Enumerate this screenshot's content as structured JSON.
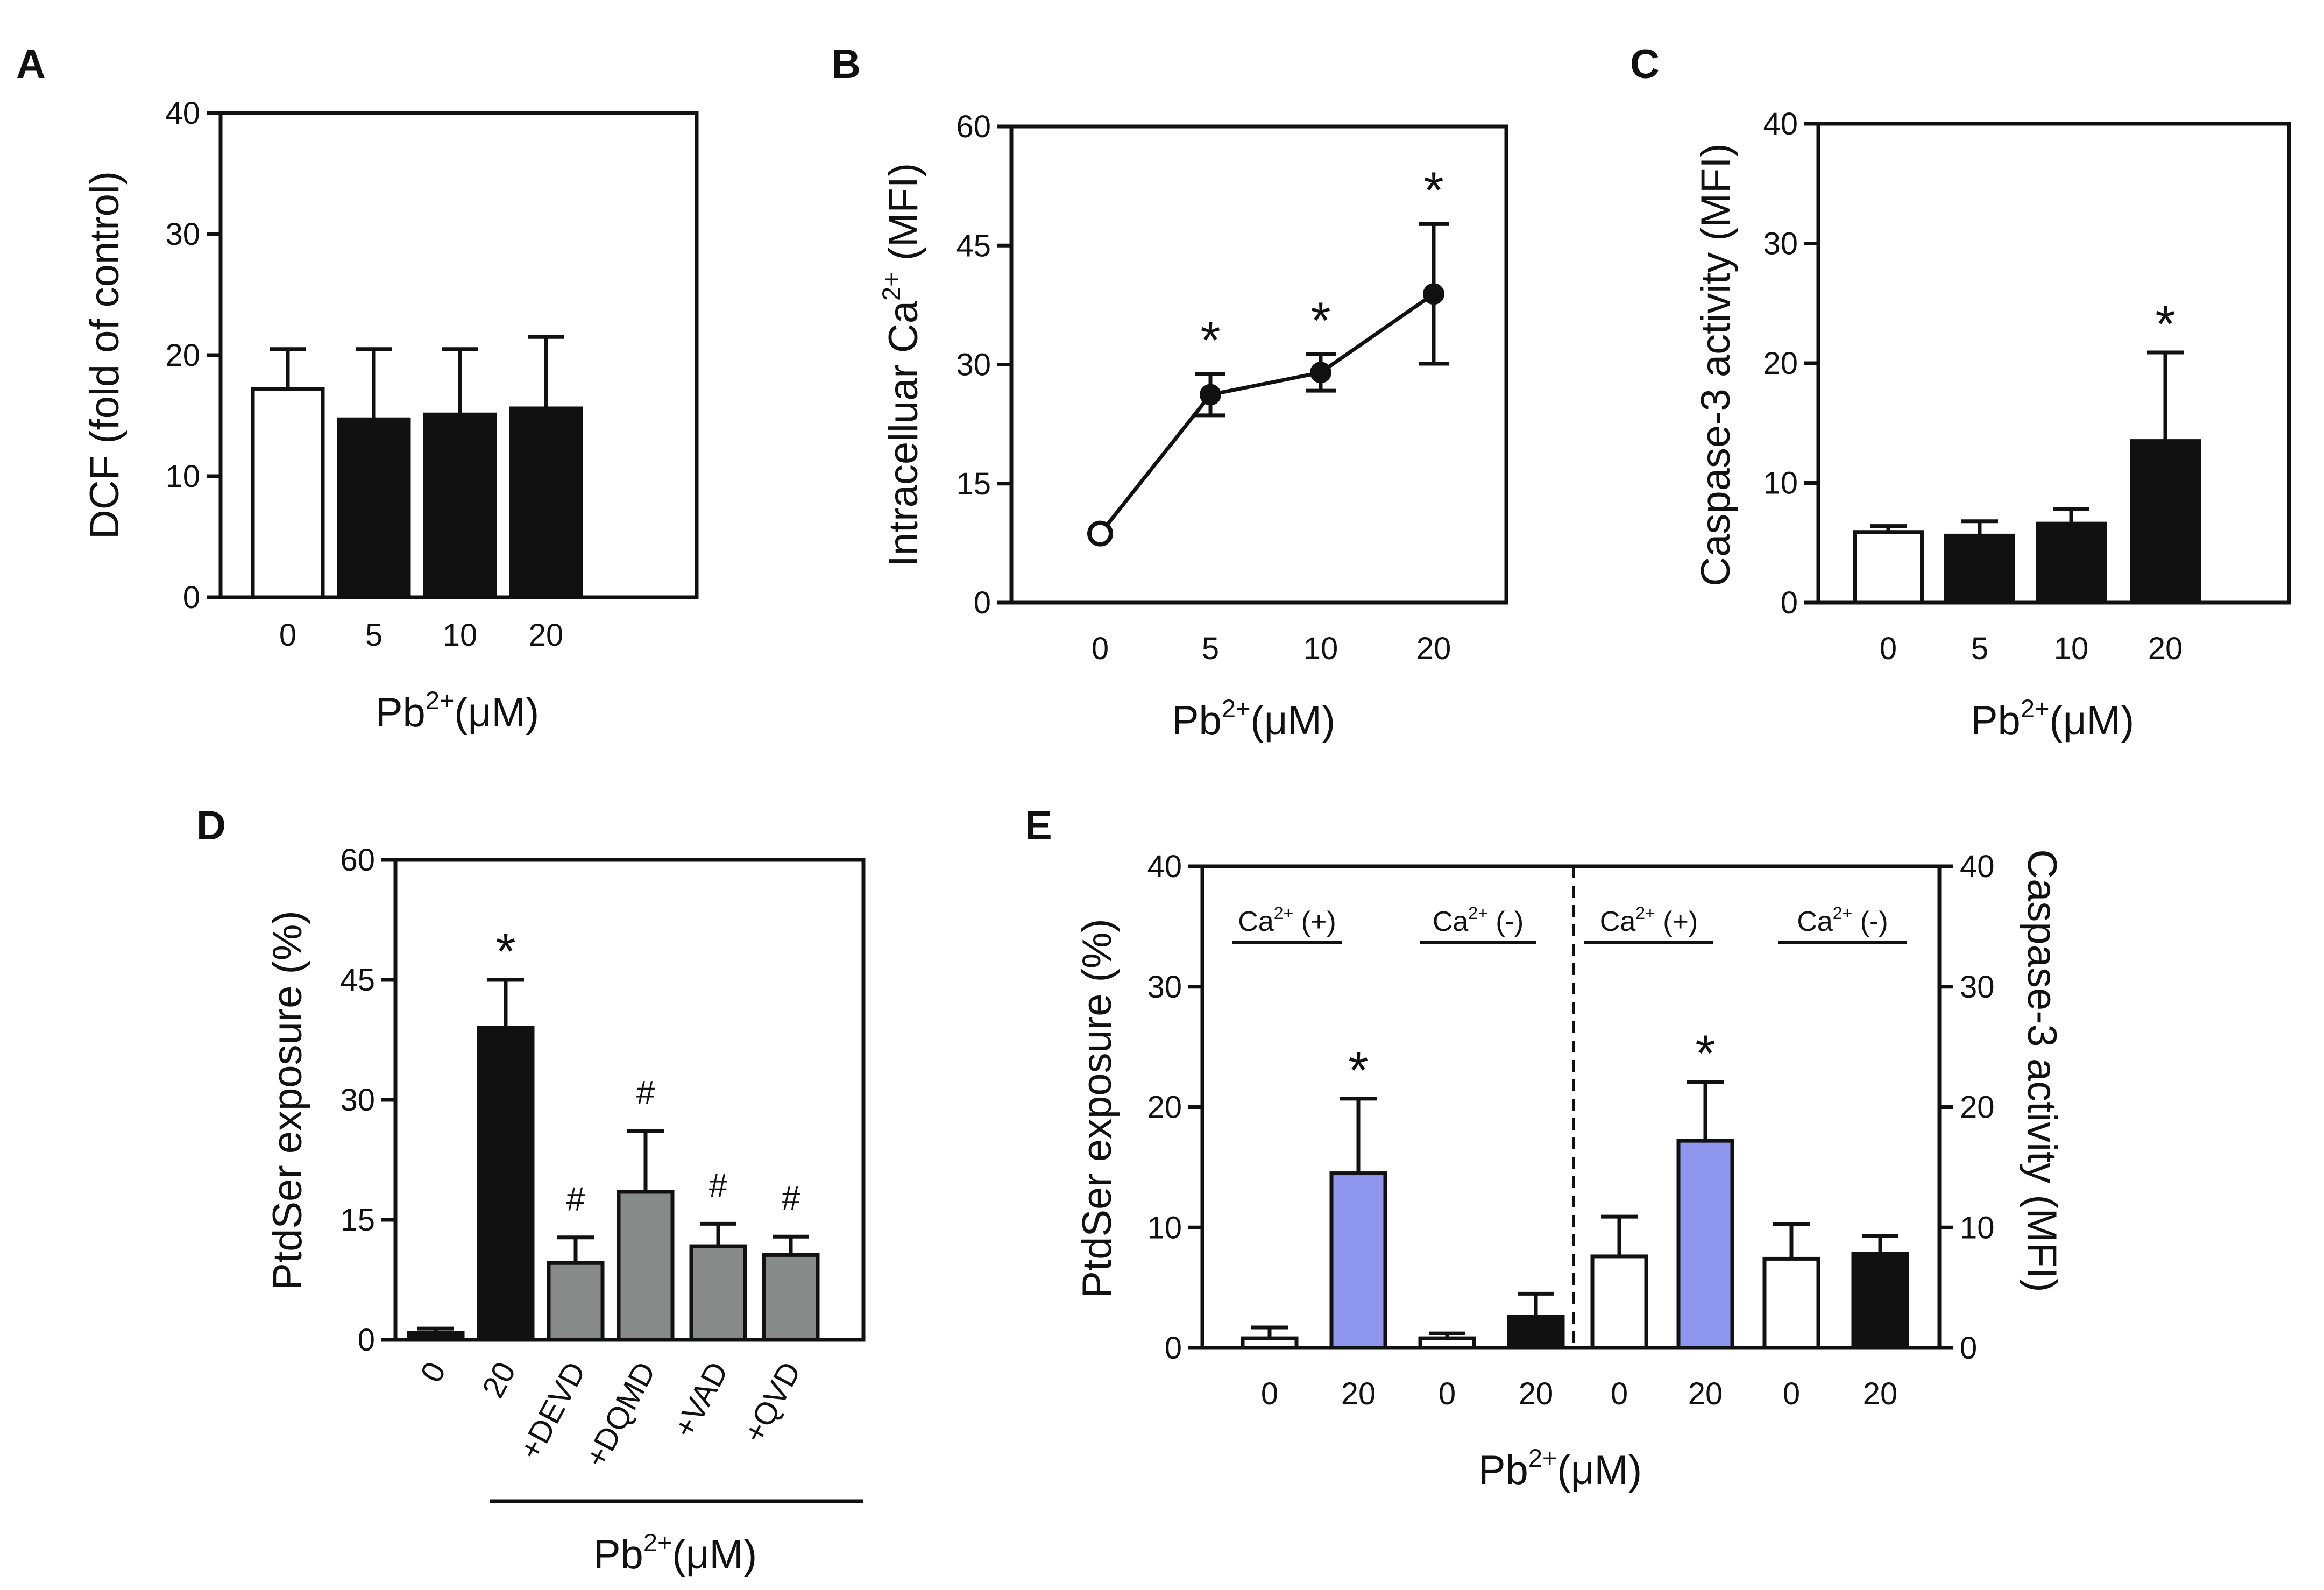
{
  "colors": {
    "black": "#111111",
    "white": "#ffffff",
    "gray": "#878a89",
    "blue": "#8f96ee"
  },
  "chart_data": [
    {
      "panel": "A",
      "type": "bar",
      "ylabel": "DCF (fold of control)",
      "xlabel_base": "Pb",
      "xlabel_sup": "2+",
      "xlabel_unit": "(μM)",
      "ylim": [
        0,
        40
      ],
      "yticks": [
        "0",
        "10",
        "20",
        "30",
        "40"
      ],
      "categories": [
        "0",
        "5",
        "10",
        "20"
      ],
      "values": [
        17.2,
        14.7,
        15.1,
        15.6
      ],
      "errors": [
        3.3,
        5.8,
        5.4,
        5.9
      ],
      "fills": [
        "white",
        "black",
        "black",
        "black"
      ],
      "stars": []
    },
    {
      "panel": "B",
      "type": "line",
      "ylabel_base": "Intracelluar Ca",
      "ylabel_sup": "2+",
      "ylabel_unit": " (MFI)",
      "xlabel_base": "Pb",
      "xlabel_sup": "2+",
      "xlabel_unit": "(μM)",
      "ylim": [
        0,
        60
      ],
      "yticks": [
        "0",
        "15",
        "30",
        "45",
        "60"
      ],
      "categories": [
        "0",
        "5",
        "10",
        "20"
      ],
      "values": [
        8.7,
        26.2,
        29.0,
        38.9
      ],
      "errors": [
        0.4,
        2.6,
        2.3,
        8.8
      ],
      "stars": [
        "",
        "*",
        "*",
        "*"
      ]
    },
    {
      "panel": "C",
      "type": "bar",
      "ylabel": "Caspase-3 activity (MFI)",
      "xlabel_base": "Pb",
      "xlabel_sup": "2+",
      "xlabel_unit": "(μM)",
      "ylim": [
        0,
        40
      ],
      "yticks": [
        "0",
        "10",
        "20",
        "30",
        "40"
      ],
      "categories": [
        "0",
        "5",
        "10",
        "20"
      ],
      "values": [
        5.9,
        5.6,
        6.6,
        13.5
      ],
      "errors": [
        0.5,
        1.2,
        1.2,
        7.4
      ],
      "fills": [
        "white",
        "black",
        "black",
        "black"
      ],
      "stars": [
        "",
        "",
        "",
        "*"
      ]
    },
    {
      "panel": "D",
      "type": "bar",
      "ylabel": "PtdSer exposure (%)",
      "xlabel_base": "Pb",
      "xlabel_sup": "2+",
      "xlabel_unit": "(μM)",
      "ylim": [
        0,
        60
      ],
      "yticks": [
        "0",
        "15",
        "30",
        "45",
        "60"
      ],
      "categories": [
        "0",
        "20",
        "+DEVD",
        "+DQMD",
        "+VAD",
        "+QVD"
      ],
      "values": [
        0.9,
        39.0,
        9.6,
        18.5,
        11.7,
        10.6
      ],
      "errors": [
        0.5,
        6.0,
        3.2,
        7.6,
        2.8,
        2.3
      ],
      "fills": [
        "black",
        "black",
        "gray",
        "gray",
        "gray",
        "gray"
      ],
      "stars": [
        "",
        "*",
        "#",
        "#",
        "#",
        "#"
      ]
    },
    {
      "panel": "E",
      "type": "bar",
      "ylabel_left": "PtdSer exposure (%)",
      "ylabel_right": "Caspase-3 activity (MFI)",
      "xlabel_base": "Pb",
      "xlabel_sup": "2+",
      "xlabel_unit": "(μM)",
      "ylim": [
        0,
        40
      ],
      "yticks": [
        "0",
        "10",
        "20",
        "30",
        "40"
      ],
      "categories": [
        "0",
        "20",
        "0",
        "20",
        "0",
        "20",
        "0",
        "20"
      ],
      "values": [
        0.8,
        14.5,
        0.8,
        2.6,
        7.6,
        17.2,
        7.4,
        7.8
      ],
      "errors": [
        0.9,
        6.2,
        0.4,
        1.9,
        3.3,
        4.9,
        2.9,
        1.5
      ],
      "fills": [
        "white",
        "blue",
        "white",
        "black",
        "white",
        "blue",
        "white",
        "black"
      ],
      "stars": [
        "",
        "*",
        "",
        "",
        "",
        "*",
        "",
        ""
      ],
      "groups": [
        {
          "base": "Ca",
          "sup": "2+",
          "rest": " (+)"
        },
        {
          "base": "Ca",
          "sup": "2+",
          "rest": " (-)"
        },
        {
          "base": "Ca",
          "sup": "2+",
          "rest": " (+)"
        },
        {
          "base": "Ca",
          "sup": "2+",
          "rest": " (-)"
        }
      ]
    }
  ]
}
